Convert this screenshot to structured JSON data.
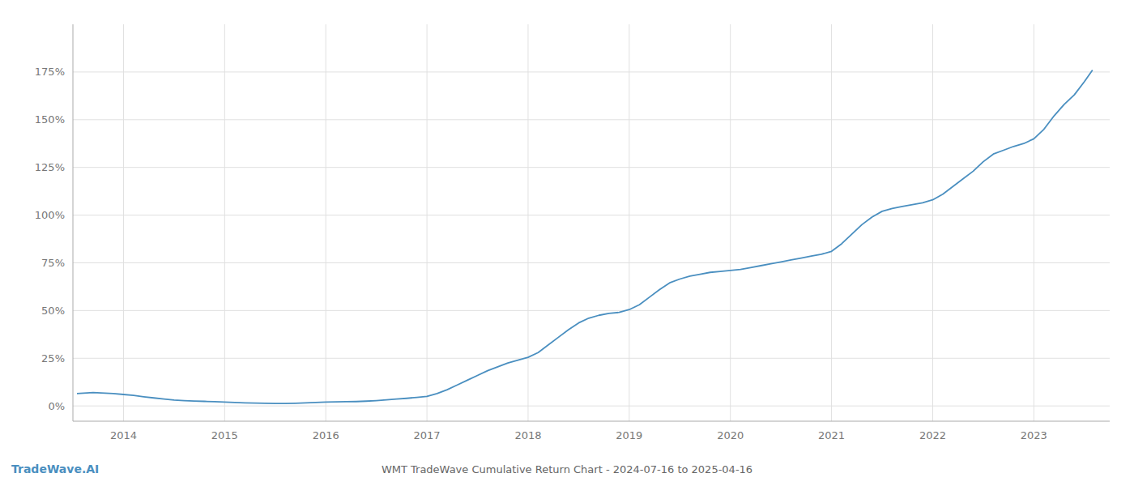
{
  "chart_data": {
    "type": "line",
    "title": "WMT TradeWave Cumulative Return Chart - 2024-07-16 to 2025-04-16",
    "annotations": [
      "TradeWave.AI"
    ],
    "color": "#4a8fc0",
    "grid": true,
    "x": [
      2013.54,
      2013.7,
      2013.9,
      2014.0,
      2014.1,
      2014.2,
      2014.3,
      2014.4,
      2014.5,
      2014.6,
      2014.7,
      2014.8,
      2014.9,
      2015.0,
      2015.1,
      2015.2,
      2015.3,
      2015.4,
      2015.5,
      2015.6,
      2015.7,
      2015.8,
      2015.9,
      2016.0,
      2016.1,
      2016.2,
      2016.3,
      2016.4,
      2016.5,
      2016.6,
      2016.7,
      2016.8,
      2016.9,
      2017.0,
      2017.1,
      2017.2,
      2017.3,
      2017.4,
      2017.5,
      2017.6,
      2017.7,
      2017.8,
      2017.9,
      2018.0,
      2018.1,
      2018.2,
      2018.3,
      2018.4,
      2018.5,
      2018.6,
      2018.7,
      2018.8,
      2018.9,
      2019.0,
      2019.1,
      2019.2,
      2019.3,
      2019.4,
      2019.5,
      2019.6,
      2019.7,
      2019.8,
      2019.9,
      2020.0,
      2020.1,
      2020.2,
      2020.3,
      2020.4,
      2020.5,
      2020.6,
      2020.7,
      2020.8,
      2020.9,
      2021.0,
      2021.1,
      2021.2,
      2021.3,
      2021.4,
      2021.5,
      2021.6,
      2021.7,
      2021.8,
      2021.9,
      2022.0,
      2022.1,
      2022.2,
      2022.3,
      2022.4,
      2022.5,
      2022.6,
      2022.7,
      2022.8,
      2022.9,
      2023.0,
      2023.1,
      2023.2,
      2023.3,
      2023.4,
      2023.5,
      2023.58
    ],
    "values": [
      6.5,
      7.0,
      6.5,
      6.0,
      5.5,
      4.8,
      4.2,
      3.6,
      3.1,
      2.8,
      2.6,
      2.4,
      2.2,
      2.0,
      1.8,
      1.6,
      1.5,
      1.4,
      1.3,
      1.3,
      1.4,
      1.6,
      1.8,
      2.0,
      2.1,
      2.2,
      2.3,
      2.5,
      2.8,
      3.2,
      3.6,
      4.0,
      4.5,
      5.0,
      6.5,
      8.5,
      11.0,
      13.5,
      16.0,
      18.5,
      20.5,
      22.5,
      24.0,
      25.5,
      28.0,
      32.0,
      36.0,
      40.0,
      43.5,
      46.0,
      47.5,
      48.5,
      49.0,
      50.5,
      53.0,
      57.0,
      61.0,
      64.5,
      66.5,
      68.0,
      69.0,
      70.0,
      70.5,
      71.0,
      71.5,
      72.5,
      73.5,
      74.5,
      75.5,
      76.5,
      77.5,
      78.5,
      79.5,
      81.0,
      85.0,
      90.0,
      95.0,
      99.0,
      102.0,
      103.5,
      104.5,
      105.5,
      106.5,
      108.0,
      111.0,
      115.0,
      119.0,
      123.0,
      128.0,
      132.0,
      134.0,
      136.0,
      137.5,
      140.0,
      145.0,
      152.0,
      158.0,
      163.0,
      170.0,
      176.0
    ],
    "xlim": [
      2013.5,
      2023.75
    ],
    "ylim": [
      -8,
      200
    ],
    "xticks": [
      2014,
      2015,
      2016,
      2017,
      2018,
      2019,
      2020,
      2021,
      2022,
      2023
    ],
    "yticks": [
      {
        "value": 0,
        "label": "0%"
      },
      {
        "value": 25,
        "label": "25%"
      },
      {
        "value": 50,
        "label": "50%"
      },
      {
        "value": 75,
        "label": "75%"
      },
      {
        "value": 100,
        "label": "100%"
      },
      {
        "value": 125,
        "label": "125%"
      },
      {
        "value": 150,
        "label": "150%"
      },
      {
        "value": 175,
        "label": "175%"
      }
    ]
  }
}
